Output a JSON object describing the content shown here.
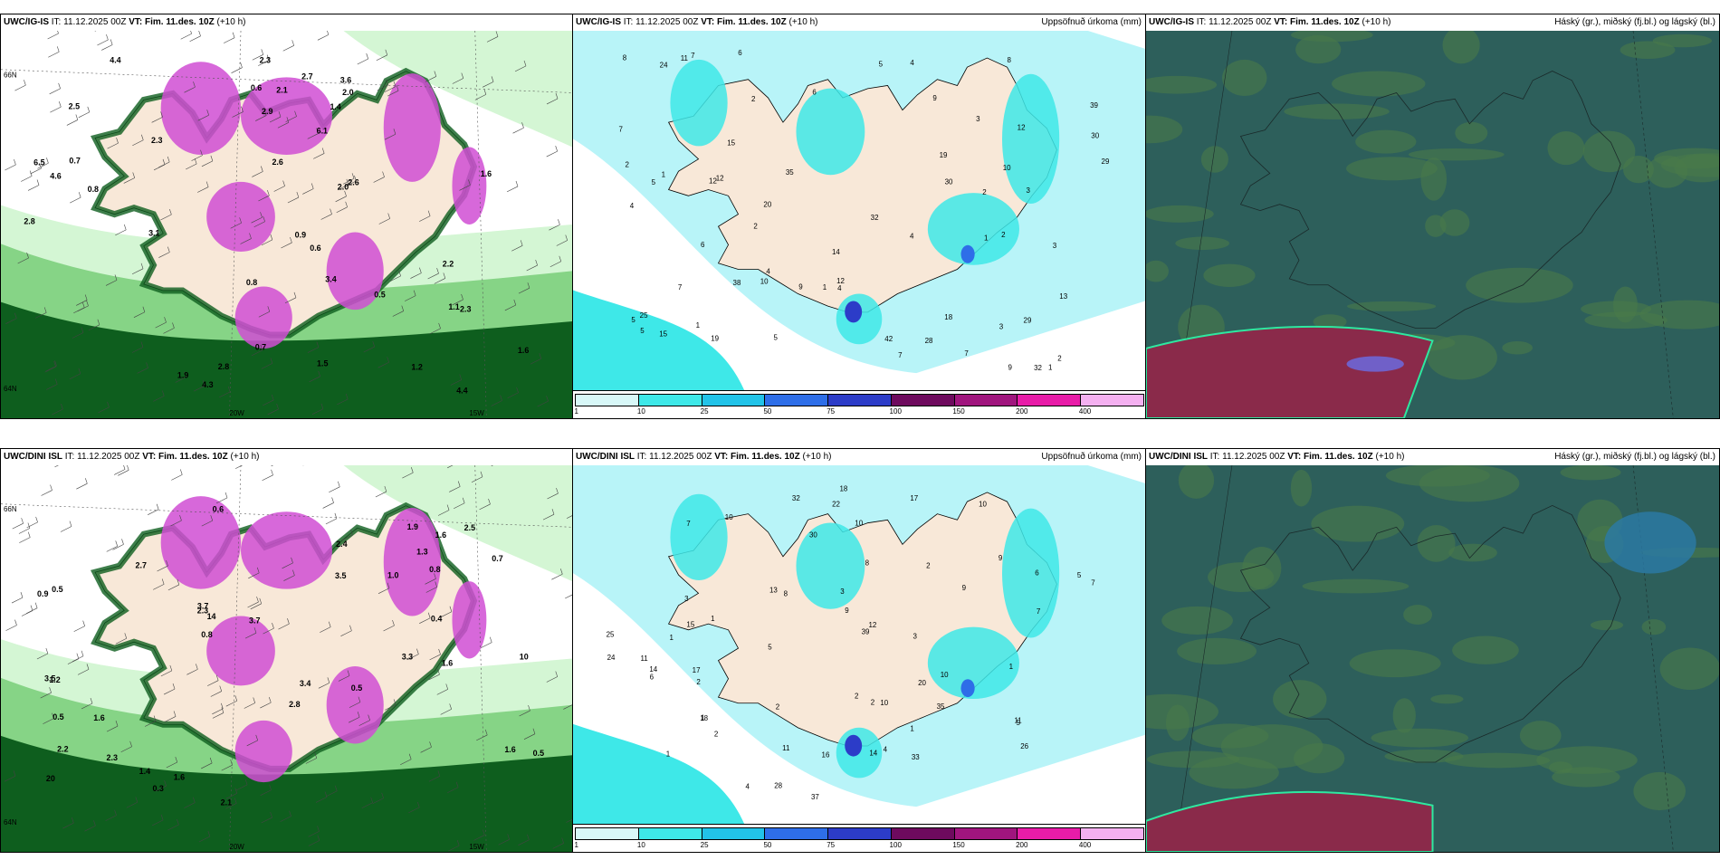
{
  "rows": [
    {
      "model": "UWC/IG-IS",
      "it_label": "IT:",
      "it_value": "11.12.2025 00Z",
      "vt_label": "VT:",
      "vt_value": "Fim. 11.des. 10Z",
      "lead": "(+10 h)",
      "wind_values": [
        "0.6",
        "0.8",
        "1.1",
        "0.9",
        "2.0",
        "2.5",
        "2.8",
        "1.2",
        "0.7",
        "0.6",
        "1.6",
        "2.3",
        "4.6",
        "4.3",
        "2.2",
        "2.7",
        "2.9",
        "2.6",
        "3.1",
        "6.1",
        "3.4",
        "2.1",
        "2.8",
        "2.3",
        "2.0",
        "0.7",
        "0.8",
        "1.6",
        "4.4",
        "4.4",
        "2.3",
        "1.5",
        "6.5",
        "3.6",
        "2.6",
        "1.9",
        "1.4",
        "0.5"
      ],
      "precip_values": [
        "14",
        "12",
        "11",
        "2",
        "1",
        "2",
        "1",
        "2",
        "10",
        "2",
        "3",
        "5",
        "8",
        "9",
        "20",
        "18",
        "32",
        "29",
        "39",
        "35",
        "32",
        "12",
        "28",
        "38",
        "29",
        "30",
        "42",
        "25",
        "12",
        "5",
        "4",
        "9",
        "15",
        "13",
        "3",
        "2",
        "1",
        "7",
        "6",
        "5",
        "4",
        "2",
        "3",
        "7",
        "4",
        "5",
        "12",
        "15",
        "6",
        "9",
        "7",
        "10",
        "4",
        "8",
        "30",
        "19",
        "19",
        "24",
        "7",
        "1",
        "4",
        "6",
        "7",
        "1",
        "3",
        "5"
      ],
      "cloud_coords": []
    },
    {
      "model": "UWC/DINI ISL",
      "it_label": "IT:",
      "it_value": "11.12.2025 00Z",
      "vt_label": "VT:",
      "vt_value": "Fim. 11.des. 10Z",
      "lead": "(+10 h)",
      "wind_values": [
        "0.5",
        "1.3",
        "3.7",
        "1.6",
        "0.5",
        "0.7",
        "1.2",
        "1.4",
        "3.5",
        "2.2",
        "2.4",
        "2.3",
        "2.8",
        "3.4",
        "3.5",
        "3.3",
        "0.8",
        "1.0",
        "0.5",
        "0.6",
        "1.6",
        "1.6",
        "1.6",
        "2.7",
        "3.7",
        "2.1",
        "1.6",
        "10",
        "20",
        "14",
        "0.9",
        "0.3",
        "1.9",
        "2.5",
        "2.3",
        "0.4",
        "0.8",
        "0.5"
      ],
      "precip_values": [
        "1",
        "10",
        "10",
        "9",
        "2",
        "1",
        "2",
        "1",
        "6",
        "9",
        "11",
        "18",
        "35",
        "39",
        "37",
        "32",
        "26",
        "25",
        "18",
        "28",
        "33",
        "22",
        "30",
        "12",
        "9",
        "11",
        "14",
        "17",
        "8",
        "10",
        "3",
        "2",
        "4",
        "2",
        "5",
        "6",
        "5",
        "3",
        "2",
        "1",
        "7",
        "10",
        "16",
        "17",
        "24",
        "15",
        "20",
        "14",
        "2",
        "1",
        "8",
        "4",
        "3",
        "7",
        "5",
        "10",
        "13",
        "11",
        "7",
        "1"
      ],
      "cloud_coords": []
    }
  ],
  "precip_title": "Uppsöfnuð úrkoma (mm)",
  "cloud_title": "Háský (gr.), miðský (fj.bl.) og lágský (bl.)",
  "legend": {
    "labels": [
      "1",
      "10",
      "25",
      "50",
      "75",
      "100",
      "150",
      "200",
      "400"
    ],
    "colors": [
      "#d8f8f8",
      "#3ee8e8",
      "#22c3e8",
      "#2e6ee8",
      "#2c3cc8",
      "#6e0a5e",
      "#a0157e",
      "#e81ca8",
      "#f4b0f0"
    ]
  },
  "coords": {
    "lat66": "66N",
    "lat64": "64N",
    "lon20": "20W",
    "lon15": "15W"
  },
  "colors": {
    "land": "#f8e8d8",
    "sea_precip": "#b8f4f8",
    "wind_light": "#d4f6d4",
    "wind_mid": "#86d486",
    "wind_dark": "#0e5e1e",
    "heavy_precip": "#d04ed4",
    "cloud_bg": "#2d5f5b",
    "cloud_green": "#4a7a4a",
    "cloud_red": "#8a2a4a"
  }
}
